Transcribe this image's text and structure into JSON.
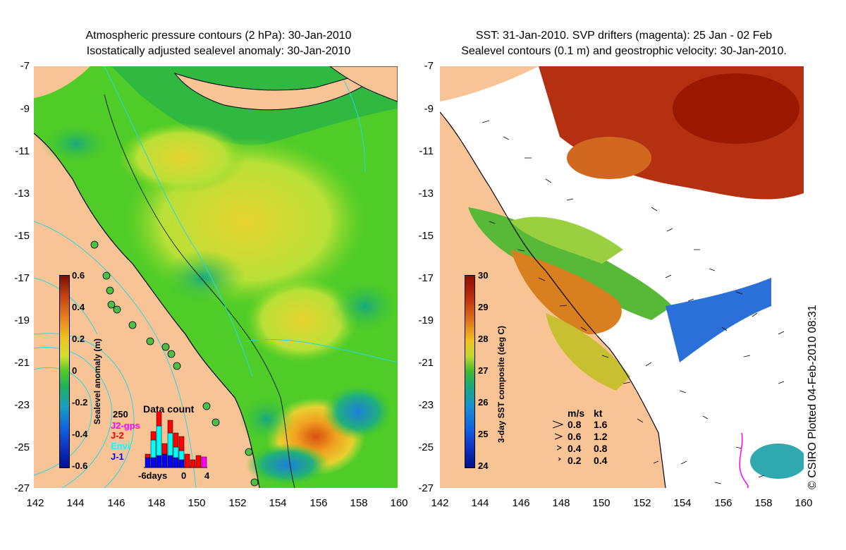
{
  "left_panel": {
    "title_line1": "Atmospheric pressure contours (2 hPa): 30-Jan-2010",
    "title_line2": "Isostatically adjusted sealevel anomaly: 30-Jan-2010",
    "colorbar_label": "Sealevel anomaly (m)",
    "colorbar_ticks": [
      "0.6",
      "0.4",
      "0.2",
      "0",
      "-0.2",
      "-0.4",
      "-0.6"
    ],
    "data_count": {
      "title": "Data count",
      "max_label": "250",
      "legend": [
        {
          "label": "J2-gps",
          "color": "#ff00ff"
        },
        {
          "label": "J-2",
          "color": "#ff0000"
        },
        {
          "label": "Envi",
          "color": "#00ffff"
        },
        {
          "label": "J-1",
          "color": "#0000ff"
        }
      ],
      "x_labels": [
        "-6days",
        "0",
        "4"
      ]
    }
  },
  "right_panel": {
    "title_line1": "SST: 31-Jan-2010. SVP drifters (magenta): 25 Jan - 02 Feb",
    "title_line2": "Sealevel contours (0.1 m) and geostrophic velocity: 30-Jan-2010.",
    "colorbar_label": "3-day SST composite (deg C)",
    "colorbar_ticks": [
      "30",
      "29",
      "28",
      "27",
      "26",
      "25",
      "24"
    ],
    "velocity_legend": {
      "header_ms": "m/s",
      "header_kt": "kt",
      "rows": [
        {
          "ms": "0.8",
          "kt": "1.6"
        },
        {
          "ms": "0.6",
          "kt": "1.2"
        },
        {
          "ms": "0.4",
          "kt": "0.8"
        },
        {
          "ms": "0.2",
          "kt": "0.4"
        }
      ]
    },
    "credit": "© CSIRO Plotted 04-Feb-2010 08:31"
  },
  "axes": {
    "y_labels": [
      "-7",
      "-9",
      "-11",
      "-13",
      "-15",
      "-17",
      "-19",
      "-21",
      "-23",
      "-25",
      "-27"
    ],
    "x_labels": [
      "142",
      "144",
      "146",
      "148",
      "150",
      "152",
      "154",
      "156",
      "158",
      "160"
    ]
  },
  "colors": {
    "land": "#f9c495",
    "sla_green": "#44cc22",
    "sst_hot": "#b02000"
  }
}
